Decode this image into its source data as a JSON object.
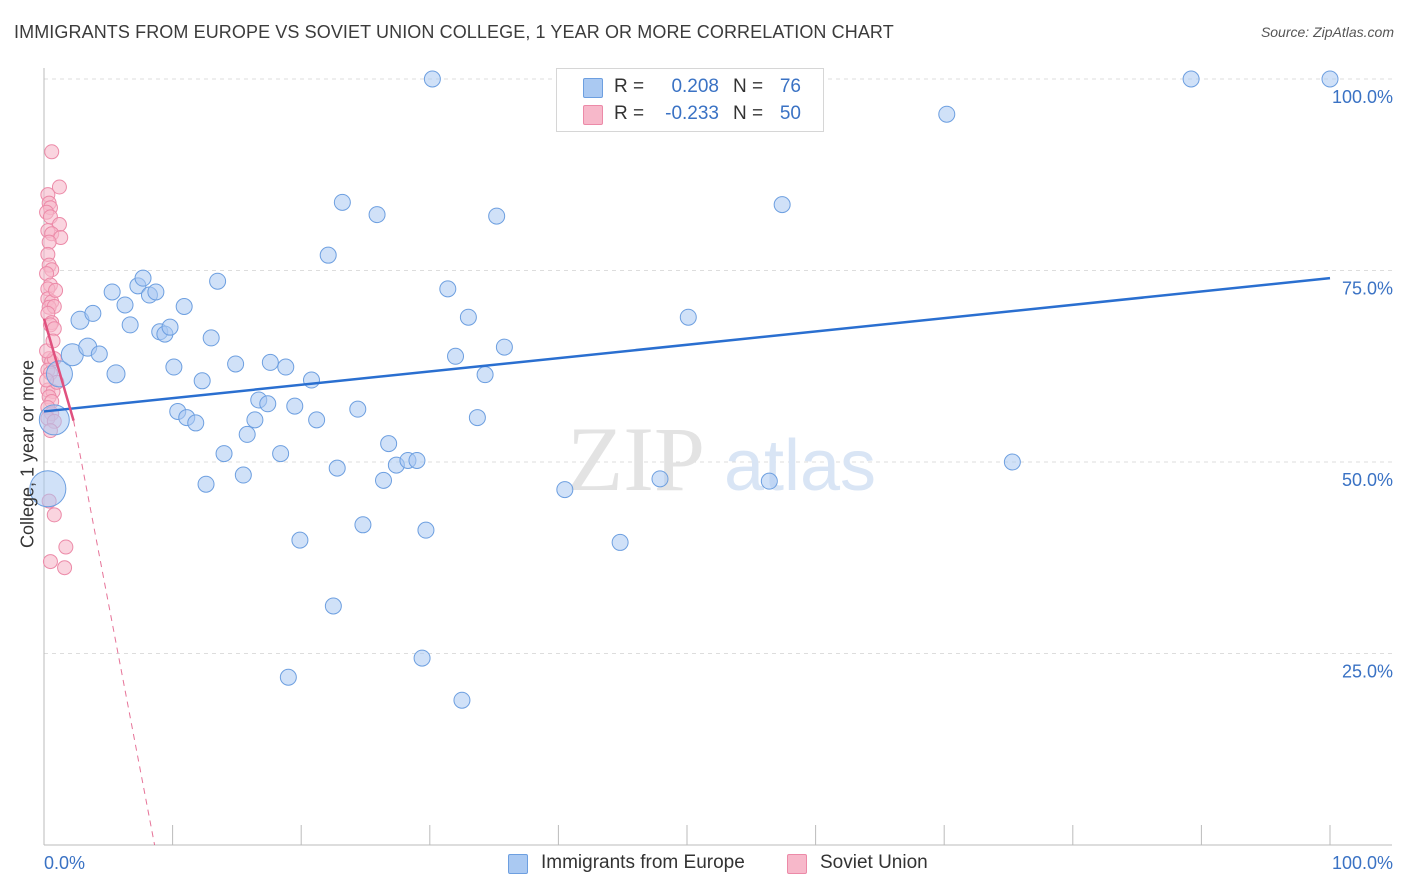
{
  "title": "IMMIGRANTS FROM EUROPE VS SOVIET UNION COLLEGE, 1 YEAR OR MORE CORRELATION CHART",
  "source": "Source: ZipAtlas.com",
  "watermark": {
    "zip": "ZIP",
    "atlas": "atlas"
  },
  "legend_top": [
    {
      "r_label": "R =",
      "r_value": "0.208",
      "n_label": "N =",
      "n_value": "76",
      "color": "#aac9f2"
    },
    {
      "r_label": "R =",
      "r_value": "-0.233",
      "n_label": "N =",
      "n_value": "50",
      "color": "#f7b8ca"
    }
  ],
  "bottom_legend": [
    {
      "label": "Immigrants from Europe",
      "color": "#aac9f2"
    },
    {
      "label": "Soviet Union",
      "color": "#f7b8ca"
    }
  ],
  "colors": {
    "blue_fill": "#aac9f2",
    "blue_stroke": "#6d9fe0",
    "blue_line": "#2a6fd0",
    "pink_fill": "#f7b8ca",
    "pink_stroke": "#ec8aa8",
    "pink_line": "#e0507e",
    "tick_text": "#3a72c4",
    "grid": "#dddddd"
  },
  "chart_data": {
    "type": "scatter",
    "title": "IMMIGRANTS FROM EUROPE VS SOVIET UNION COLLEGE, 1 YEAR OR MORE CORRELATION CHART",
    "xlabel": "",
    "ylabel": "College, 1 year or more",
    "xlim": [
      0,
      100
    ],
    "ylim": [
      0,
      100
    ],
    "x_tick_labels": [
      "0.0%",
      "100.0%"
    ],
    "y_tick_labels": [
      "25.0%",
      "50.0%",
      "75.0%",
      "100.0%"
    ],
    "y_ticks": [
      25,
      50,
      75,
      100
    ],
    "grid": true,
    "legend_position": "top-center",
    "series": [
      {
        "name": "Immigrants from Europe",
        "r": 0.208,
        "n": 76,
        "trend": {
          "x": [
            0,
            100
          ],
          "y": [
            56.6,
            74.0
          ],
          "style": "solid"
        },
        "points": [
          [
            0.3,
            46.5,
            18
          ],
          [
            0.8,
            55.5,
            15
          ],
          [
            1.2,
            61.5,
            13
          ],
          [
            2.2,
            64,
            11
          ],
          [
            2.8,
            68.5,
            9
          ],
          [
            3.4,
            65,
            9
          ],
          [
            3.8,
            69.4,
            8
          ],
          [
            4.3,
            64.1,
            8
          ],
          [
            5.3,
            72.2,
            8
          ],
          [
            5.6,
            61.5,
            9
          ],
          [
            6.3,
            70.5,
            8
          ],
          [
            6.7,
            67.9,
            8
          ],
          [
            7.3,
            73,
            8
          ],
          [
            7.7,
            74,
            8
          ],
          [
            8.2,
            71.8,
            8
          ],
          [
            8.7,
            72.2,
            8
          ],
          [
            9.0,
            67,
            8
          ],
          [
            9.4,
            66.7,
            8
          ],
          [
            9.8,
            67.6,
            8
          ],
          [
            10.1,
            62.4,
            8
          ],
          [
            10.4,
            56.6,
            8
          ],
          [
            10.9,
            70.3,
            8
          ],
          [
            11.1,
            55.8,
            8
          ],
          [
            11.8,
            55.1,
            8
          ],
          [
            12.3,
            60.6,
            8
          ],
          [
            12.6,
            47.1,
            8
          ],
          [
            13.0,
            66.2,
            8
          ],
          [
            13.5,
            73.6,
            8
          ],
          [
            14.0,
            51.1,
            8
          ],
          [
            14.9,
            62.8,
            8
          ],
          [
            15.5,
            48.3,
            8
          ],
          [
            15.8,
            53.6,
            8
          ],
          [
            16.4,
            55.5,
            8
          ],
          [
            16.7,
            58.1,
            8
          ],
          [
            17.4,
            57.6,
            8
          ],
          [
            17.6,
            63,
            8
          ],
          [
            18.4,
            51.1,
            8
          ],
          [
            18.8,
            62.4,
            8
          ],
          [
            19.0,
            21.9,
            8
          ],
          [
            19.5,
            57.3,
            8
          ],
          [
            19.9,
            39.8,
            8
          ],
          [
            20.8,
            60.7,
            8
          ],
          [
            21.2,
            55.5,
            8
          ],
          [
            22.1,
            77,
            8
          ],
          [
            22.5,
            31.2,
            8
          ],
          [
            22.8,
            49.2,
            8
          ],
          [
            23.2,
            83.9,
            8
          ],
          [
            24.4,
            56.9,
            8
          ],
          [
            24.8,
            41.8,
            8
          ],
          [
            25.9,
            82.3,
            8
          ],
          [
            26.4,
            47.6,
            8
          ],
          [
            26.8,
            52.4,
            8
          ],
          [
            27.4,
            49.6,
            8
          ],
          [
            28.3,
            50.2,
            8
          ],
          [
            29.0,
            50.2,
            8
          ],
          [
            29.4,
            24.4,
            8
          ],
          [
            29.7,
            41.1,
            8
          ],
          [
            30.2,
            100,
            8
          ],
          [
            31.4,
            72.6,
            8
          ],
          [
            32.0,
            63.8,
            8
          ],
          [
            32.5,
            18.9,
            8
          ],
          [
            33.0,
            68.9,
            8
          ],
          [
            33.7,
            55.8,
            8
          ],
          [
            34.3,
            61.4,
            8
          ],
          [
            35.2,
            82.1,
            8
          ],
          [
            35.8,
            65,
            8
          ],
          [
            40.5,
            46.4,
            8
          ],
          [
            44.8,
            39.5,
            8
          ],
          [
            47.9,
            47.8,
            8
          ],
          [
            50.1,
            68.9,
            8
          ],
          [
            56.4,
            47.5,
            8
          ],
          [
            57.4,
            83.6,
            8
          ],
          [
            70.2,
            95.4,
            8
          ],
          [
            75.3,
            50,
            8
          ],
          [
            89.2,
            100,
            8
          ],
          [
            100.0,
            100,
            8
          ]
        ]
      },
      {
        "name": "Soviet Union",
        "r": -0.233,
        "n": 50,
        "trend": {
          "x": [
            0,
            2.3
          ],
          "y": [
            68.7,
            55.4
          ],
          "style": "solid",
          "extension": {
            "x": [
              2.3,
              8.6
            ],
            "y": [
              55.4,
              0
            ],
            "style": "dashed"
          }
        },
        "points": [
          [
            0.6,
            90.5
          ],
          [
            1.2,
            85.9
          ],
          [
            0.3,
            84.9
          ],
          [
            0.4,
            83.8
          ],
          [
            0.5,
            83.2
          ],
          [
            0.2,
            82.6
          ],
          [
            0.5,
            82.0
          ],
          [
            1.2,
            81.0
          ],
          [
            0.3,
            80.2
          ],
          [
            0.6,
            79.8
          ],
          [
            1.3,
            79.3
          ],
          [
            0.4,
            78.7
          ],
          [
            0.3,
            77.1
          ],
          [
            0.4,
            75.7
          ],
          [
            0.6,
            75.1
          ],
          [
            0.2,
            74.6
          ],
          [
            0.5,
            73.1
          ],
          [
            0.3,
            72.6
          ],
          [
            0.3,
            71.3
          ],
          [
            0.6,
            70.9
          ],
          [
            0.4,
            70.2
          ],
          [
            0.8,
            70.3
          ],
          [
            0.3,
            69.4
          ],
          [
            0.6,
            68.2
          ],
          [
            0.5,
            67.9
          ],
          [
            0.8,
            67.4
          ],
          [
            0.4,
            63.5
          ],
          [
            0.6,
            63.1
          ],
          [
            0.8,
            63.5
          ],
          [
            0.3,
            62.0
          ],
          [
            0.5,
            61.6
          ],
          [
            0.3,
            59.4
          ],
          [
            0.7,
            59.2
          ],
          [
            0.4,
            58.5
          ],
          [
            0.6,
            57.9
          ],
          [
            0.3,
            57.1
          ],
          [
            0.6,
            56.3
          ],
          [
            0.3,
            55.7
          ],
          [
            0.8,
            55.3
          ],
          [
            0.5,
            54.1
          ],
          [
            0.4,
            44.9
          ],
          [
            0.8,
            43.1
          ],
          [
            1.7,
            38.9
          ],
          [
            0.5,
            37.0
          ],
          [
            1.6,
            36.2
          ],
          [
            0.2,
            64.5
          ],
          [
            1.0,
            60.4
          ],
          [
            0.7,
            65.8
          ],
          [
            0.2,
            60.7
          ],
          [
            0.9,
            72.4
          ]
        ]
      }
    ]
  }
}
